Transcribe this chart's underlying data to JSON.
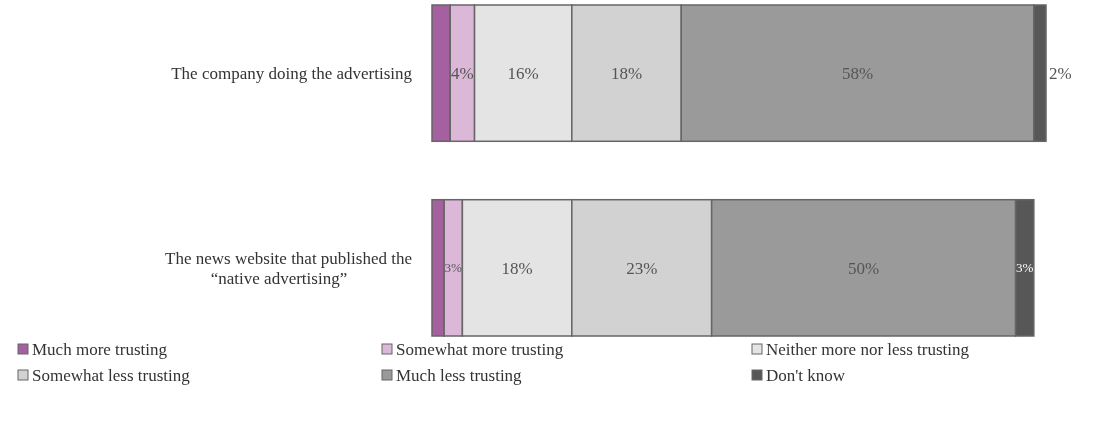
{
  "chart_data": {
    "type": "bar",
    "orientation": "horizontal",
    "stacked": true,
    "categories": [
      "The company doing the advertising",
      "The news website that published the “native advertising”"
    ],
    "legend": "bottom",
    "series": [
      {
        "name": "Much more trusting",
        "color": "#a4609f",
        "values": [
          3,
          2
        ],
        "value_labels": [
          null,
          null
        ]
      },
      {
        "name": "Somewhat more trusting",
        "color": "#dcb8d8",
        "values": [
          4,
          3
        ],
        "value_labels": [
          "4%",
          "3%"
        ]
      },
      {
        "name": "Neither more nor less trusting",
        "color": "#e4e4e4",
        "values": [
          16,
          18
        ],
        "value_labels": [
          "16%",
          "18%"
        ]
      },
      {
        "name": "Somewhat less trusting",
        "color": "#d2d2d2",
        "values": [
          18,
          23
        ],
        "value_labels": [
          "18%",
          "23%"
        ]
      },
      {
        "name": "Much less trusting",
        "color": "#9a9a9a",
        "values": [
          58,
          50
        ],
        "value_labels": [
          "58%",
          "50%"
        ]
      },
      {
        "name": "Don't know",
        "color": "#575757",
        "values": [
          2,
          3
        ],
        "value_labels": [
          "2%",
          "3%"
        ]
      }
    ]
  }
}
